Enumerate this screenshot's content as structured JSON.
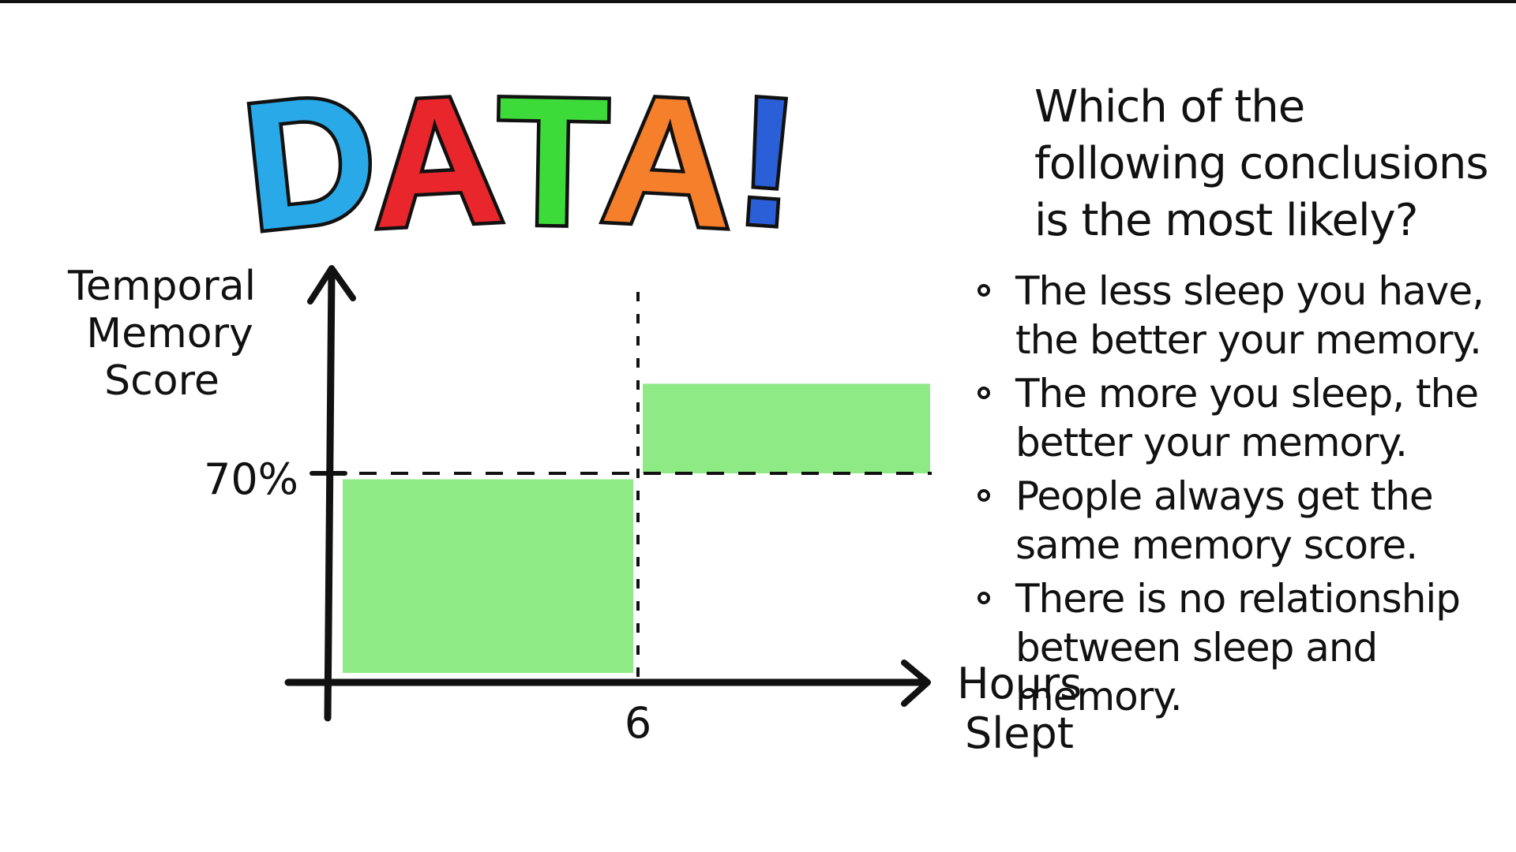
{
  "title": {
    "letters": [
      {
        "char": "D",
        "color": "#2aa9e8"
      },
      {
        "char": "A",
        "color": "#e8262b"
      },
      {
        "char": "T",
        "color": "#3ddb3a"
      },
      {
        "char": "A",
        "color": "#f57f2a"
      },
      {
        "char": "!",
        "color": "#2a5fd8"
      }
    ]
  },
  "chart_data": {
    "type": "bar",
    "ylabel": "Temporal Memory Score",
    "xlabel": "Hours Slept",
    "x_ticks": [
      "6"
    ],
    "y_ticks": [
      "70%"
    ],
    "threshold_x": 6,
    "threshold_y": 70,
    "regions": [
      {
        "x_range": [
          0,
          6
        ],
        "y_range": [
          0,
          68
        ],
        "color": "#8eea84"
      },
      {
        "x_range": [
          6,
          12
        ],
        "y_range": [
          70,
          100
        ],
        "color": "#8eea84"
      }
    ],
    "xlim": [
      0,
      12
    ],
    "ylim": [
      0,
      100
    ],
    "grid": false,
    "legend": "none"
  },
  "question": "Which of the following conclusions is the most likely?",
  "options": [
    "The less sleep you have, the better your memory.",
    "The more you sleep, the better your memory.",
    "People always get the same memory score.",
    "There is no relationship between sleep and memory."
  ]
}
